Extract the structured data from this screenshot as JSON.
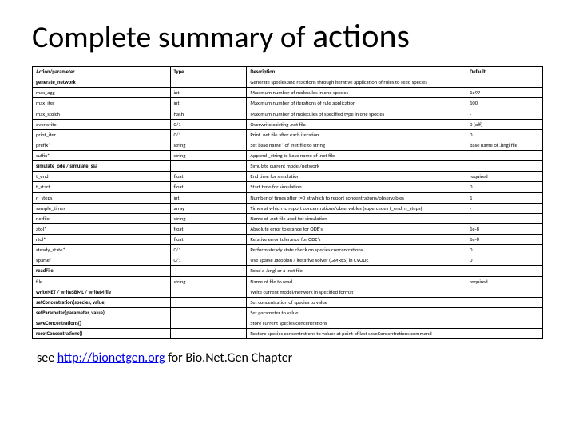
{
  "title_part1": "Complete summary of ",
  "title_part2": "actions",
  "footer_prefix": "see ",
  "footer_link_text": "http://bionetgen.org",
  "footer_suffix": " for Bio.Net.Gen Chapter",
  "headers": {
    "c1": "Action/parameter",
    "c2": "Type",
    "c3": "Description",
    "c4": "Default"
  },
  "rows": [
    {
      "c1": "generate_network",
      "c2": "",
      "c3": "Generate species and reactions through iterative application of rules to seed species",
      "c4": "",
      "bold1": true
    },
    {
      "c1": "max_agg",
      "c2": "int",
      "c3": "Maximum number of molecules in one species",
      "c4": "1e99"
    },
    {
      "c1": "max_iter",
      "c2": "int",
      "c3": "Maximum number of iterations of rule application",
      "c4": "100"
    },
    {
      "c1": "max_stoich",
      "c2": "hash",
      "c3": "Maximum number of molecules of specified type in one species",
      "c4": "-"
    },
    {
      "c1": "overwrite",
      "c2": "0/1",
      "c3": "Overwrite existing .net file",
      "c4": "0 (off)"
    },
    {
      "c1": "print_iter",
      "c2": "0/1",
      "c3": "Print .net file after each iteration",
      "c4": "0"
    },
    {
      "c1": "prefix*",
      "c2": "string",
      "c3": "Set base name* of .net file to string",
      "c4": "base name of .bngl file"
    },
    {
      "c1": "suffix*",
      "c2": "string",
      "c3": "Append _string to base name of .net file",
      "c4": "-"
    },
    {
      "c1": "simulate_ode / simulate_ssa",
      "c2": "",
      "c3": "Simulate current model/network",
      "c4": "",
      "bold1": true
    },
    {
      "c1": "t_end",
      "c2": "float",
      "c3": "End time for simulation",
      "c4": "required"
    },
    {
      "c1": "t_start",
      "c2": "float",
      "c3": "Start time for simulation",
      "c4": "0"
    },
    {
      "c1": "n_steps",
      "c2": "int",
      "c3": "Number of times after t=0 at which to report concentrations/observables",
      "c4": "1"
    },
    {
      "c1": "sample_times",
      "c2": "array",
      "c3": "Times at which to report concentrations/observables (supercedes t_end, n_steps)",
      "c4": "-"
    },
    {
      "c1": "netfile",
      "c2": "string",
      "c3": "Name of .net file used for simulation",
      "c4": "-"
    },
    {
      "c1": "atol*",
      "c2": "float",
      "c3": "Absolute error tolerance for ODE's",
      "c4": "1e-8"
    },
    {
      "c1": "rtol*",
      "c2": "float",
      "c3": "Relative error tolerance for ODE's",
      "c4": "1e-8"
    },
    {
      "c1": "steady_state*",
      "c2": "0/1",
      "c3": "Perform steady state check on species concentrations",
      "c4": "0"
    },
    {
      "c1": "sparse*",
      "c2": "0/1",
      "c3": "Use sparse Jacobian / iterative solver (GMRES) in CVODE",
      "c4": "0"
    },
    {
      "c1": "readFile",
      "c2": "",
      "c3": "Read a .bngl or a .net file",
      "c4": "",
      "bold1": true
    },
    {
      "c1": "file",
      "c2": "string",
      "c3": "Name of file to read",
      "c4": "required"
    },
    {
      "c1": "writeNET / writeSBML / writeMfile",
      "c2": "",
      "c3": "Write current model/network in specified format",
      "c4": "",
      "bold1": true
    },
    {
      "c1": "setConcentration(species, value)",
      "c2": "",
      "c3": "Set concentration of species to value",
      "c4": "",
      "bold1": true
    },
    {
      "c1": "setParameter(parameter, value)",
      "c2": "",
      "c3": "Set parameter to value",
      "c4": "",
      "bold1": true
    },
    {
      "c1": "saveConcentrations()",
      "c2": "",
      "c3": "Store current species concentrations",
      "c4": "",
      "bold1": true
    },
    {
      "c1": "resetConcentrations()",
      "c2": "",
      "c3": "Restore species concentrations to values at point of last saveConcentrations command",
      "c4": "",
      "bold1": true
    }
  ]
}
